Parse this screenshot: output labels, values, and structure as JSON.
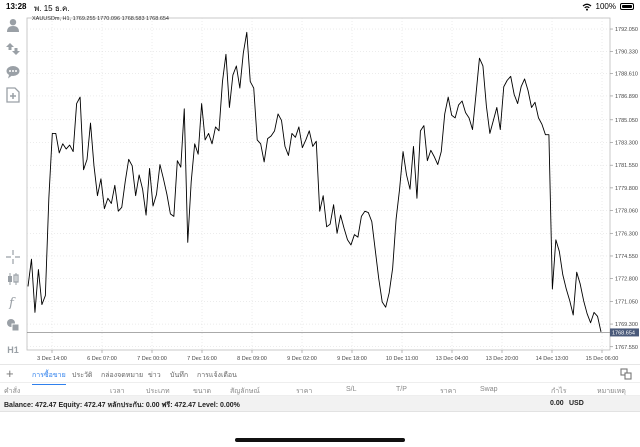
{
  "status_bar": {
    "time": "13:28",
    "date": "พ. 15 ธ.ค.",
    "battery": "100%"
  },
  "sidebar": {
    "label_h1": "H1"
  },
  "chart": {
    "title": "XAUUSDm, H1, 1769.255 1770.096 1768.583 1768.654",
    "current_price_label": "1768.654",
    "colors": {
      "line": "#000000",
      "grid": "#d8d8d8",
      "price_tag": "#4a5a7a"
    }
  },
  "chart_data": {
    "type": "line",
    "symbol": "XAUUSDm",
    "timeframe": "H1",
    "ohlc": {
      "open": 1769.255,
      "high": 1770.096,
      "low": 1768.583,
      "close": 1768.654
    },
    "ylim": [
      1767.3,
      1792.9
    ],
    "y_ticks": [
      "1792.050",
      "1790.330",
      "1788.610",
      "1786.890",
      "1785.050",
      "1783.300",
      "1781.550",
      "1779.800",
      "1778.060",
      "1776.300",
      "1774.550",
      "1772.800",
      "1771.050",
      "1769.300",
      "1767.550"
    ],
    "x_ticks": [
      "3 Dec 14:00",
      "6 Dec 07:00",
      "7 Dec 00:00",
      "7 Dec 16:00",
      "8 Dec 09:00",
      "9 Dec 02:00",
      "9 Dec 18:00",
      "10 Dec 11:00",
      "13 Dec 04:00",
      "13 Dec 20:00",
      "14 Dec 13:00",
      "15 Dec 06:00"
    ],
    "current_price": 1768.654,
    "values": [
      1772.2,
      1774.3,
      1770.2,
      1773.5,
      1770.8,
      1771.5,
      1779.0,
      1784.0,
      1784.0,
      1782.5,
      1783.2,
      1782.8,
      1783.1,
      1782.6,
      1786.3,
      1786.8,
      1781.2,
      1782.0,
      1784.8,
      1781.5,
      1779.2,
      1780.5,
      1778.2,
      1779.0,
      1778.6,
      1780.0,
      1778.0,
      1778.3,
      1780.3,
      1782.0,
      1781.5,
      1779.2,
      1780.8,
      1779.7,
      1777.7,
      1781.3,
      1778.4,
      1779.3,
      1781.6,
      1780.5,
      1779.3,
      1777.8,
      1777.6,
      1781.9,
      1781.4,
      1785.9,
      1775.6,
      1780.3,
      1783.2,
      1782.4,
      1786.3,
      1783.5,
      1784.0,
      1783.2,
      1784.5,
      1784.2,
      1788.0,
      1790.1,
      1786.0,
      1788.5,
      1789.2,
      1787.5,
      1790.2,
      1791.8,
      1788.0,
      1787.5,
      1783.5,
      1783.2,
      1781.8,
      1783.6,
      1783.8,
      1784.2,
      1785.5,
      1785.0,
      1783.0,
      1782.3,
      1784.0,
      1783.7,
      1784.5,
      1782.9,
      1783.5,
      1784.2,
      1783.0,
      1783.4,
      1778.0,
      1779.2,
      1776.8,
      1777.0,
      1778.5,
      1776.3,
      1777.7,
      1776.7,
      1775.8,
      1775.4,
      1776.2,
      1776.0,
      1777.6,
      1778.0,
      1777.9,
      1777.2,
      1775.0,
      1772.8,
      1771.0,
      1770.6,
      1771.7,
      1773.6,
      1777.4,
      1779.7,
      1782.6,
      1780.8,
      1779.7,
      1783.0,
      1779.0,
      1784.2,
      1784.6,
      1781.9,
      1782.7,
      1782.2,
      1781.6,
      1782.6,
      1785.5,
      1786.8,
      1785.4,
      1785.2,
      1786.2,
      1786.5,
      1785.6,
      1785.2,
      1784.3,
      1787.0,
      1789.8,
      1789.2,
      1786.1,
      1784.0,
      1785.0,
      1786.0,
      1784.3,
      1787.6,
      1788.1,
      1788.4,
      1787.0,
      1786.3,
      1787.6,
      1788.2,
      1787.3,
      1786.0,
      1786.4,
      1785.2,
      1784.7,
      1783.9,
      1783.9,
      1772.0,
      1775.8,
      1774.9,
      1773.1,
      1772.0,
      1771.1,
      1770.0,
      1773.3,
      1772.4,
      1771.1,
      1770.1,
      1769.4,
      1770.2,
      1769.9,
      1768.7
    ]
  },
  "tabs": {
    "add": "+",
    "items": [
      "การซื้อขาย",
      "ประวัติ",
      "กล่องจดหมาย",
      "ข่าว",
      "บันทึก",
      "การแจ้งเตือน"
    ]
  },
  "columns": [
    "คำสั่ง",
    "เวลา",
    "ประเภท",
    "ขนาด",
    "สัญลักษณ์",
    "ราคา",
    "S/L",
    "T/P",
    "ราคา",
    "Swap",
    "กำไร",
    "หมายเหตุ"
  ],
  "balance": {
    "text": "Balance: 472.47 Equity: 472.47 หลักประกัน: 0.00 ฟรี: 472.47 Level: 0.00%",
    "profit": "0.00",
    "currency": "USD"
  },
  "icons": [
    "person-icon",
    "arrows-icon",
    "chat-icon",
    "add-document-icon",
    "crosshair-icon",
    "candles-icon",
    "function-icon",
    "objects-icon",
    "wifi-icon",
    "battery-icon",
    "tools-icon"
  ]
}
